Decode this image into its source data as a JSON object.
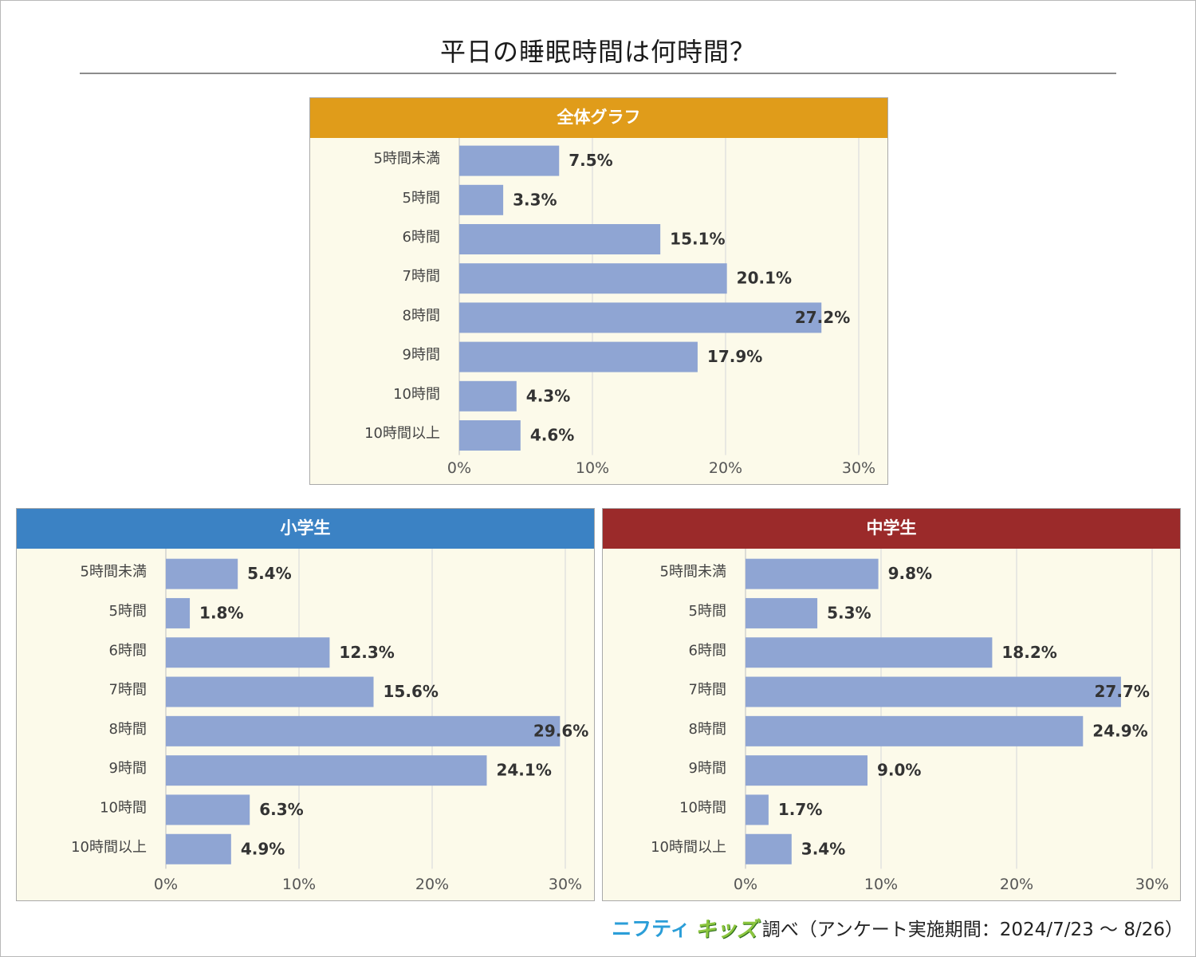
{
  "title": "平日の睡眠時間は何時間？",
  "footer": {
    "brand_part1": "ニフティ",
    "brand_part2": "キッズ",
    "note": "調べ（アンケート実施期間：2024/7/23 ～ 8/26）"
  },
  "colors": {
    "bar": "#8fa5d3",
    "plot_background": "#fcfaea",
    "header_all": "#e09c1a",
    "header_elementary": "#3b82c4",
    "header_junior_high": "#9b2a2a"
  },
  "chart_data": [
    {
      "type": "bar",
      "orientation": "horizontal",
      "title": "全体グラフ",
      "categories": [
        "5時間未満",
        "5時間",
        "6時間",
        "7時間",
        "8時間",
        "9時間",
        "10時間",
        "10時間以上"
      ],
      "values": [
        7.5,
        3.3,
        15.1,
        20.1,
        27.2,
        17.9,
        4.3,
        4.6
      ],
      "value_labels": [
        "7.5%",
        "3.3%",
        "15.1%",
        "20.1%",
        "27.2%",
        "17.9%",
        "4.3%",
        "4.6%"
      ],
      "xlim": [
        0,
        30
      ],
      "x_ticks": [
        "0%",
        "10%",
        "20%",
        "30%"
      ],
      "grid": true
    },
    {
      "type": "bar",
      "orientation": "horizontal",
      "title": "小学生",
      "categories": [
        "5時間未満",
        "5時間",
        "6時間",
        "7時間",
        "8時間",
        "9時間",
        "10時間",
        "10時間以上"
      ],
      "values": [
        5.4,
        1.8,
        12.3,
        15.6,
        29.6,
        24.1,
        6.3,
        4.9
      ],
      "value_labels": [
        "5.4%",
        "1.8%",
        "12.3%",
        "15.6%",
        "29.6%",
        "24.1%",
        "6.3%",
        "4.9%"
      ],
      "xlim": [
        0,
        30
      ],
      "x_ticks": [
        "0%",
        "10%",
        "20%",
        "30%"
      ],
      "grid": true
    },
    {
      "type": "bar",
      "orientation": "horizontal",
      "title": "中学生",
      "categories": [
        "5時間未満",
        "5時間",
        "6時間",
        "7時間",
        "8時間",
        "9時間",
        "10時間",
        "10時間以上"
      ],
      "values": [
        9.8,
        5.3,
        18.2,
        27.7,
        24.9,
        9.0,
        1.7,
        3.4
      ],
      "value_labels": [
        "9.8%",
        "5.3%",
        "18.2%",
        "27.7%",
        "24.9%",
        "9.0%",
        "1.7%",
        "3.4%"
      ],
      "xlim": [
        0,
        30
      ],
      "x_ticks": [
        "0%",
        "10%",
        "20%",
        "30%"
      ],
      "grid": true
    }
  ]
}
